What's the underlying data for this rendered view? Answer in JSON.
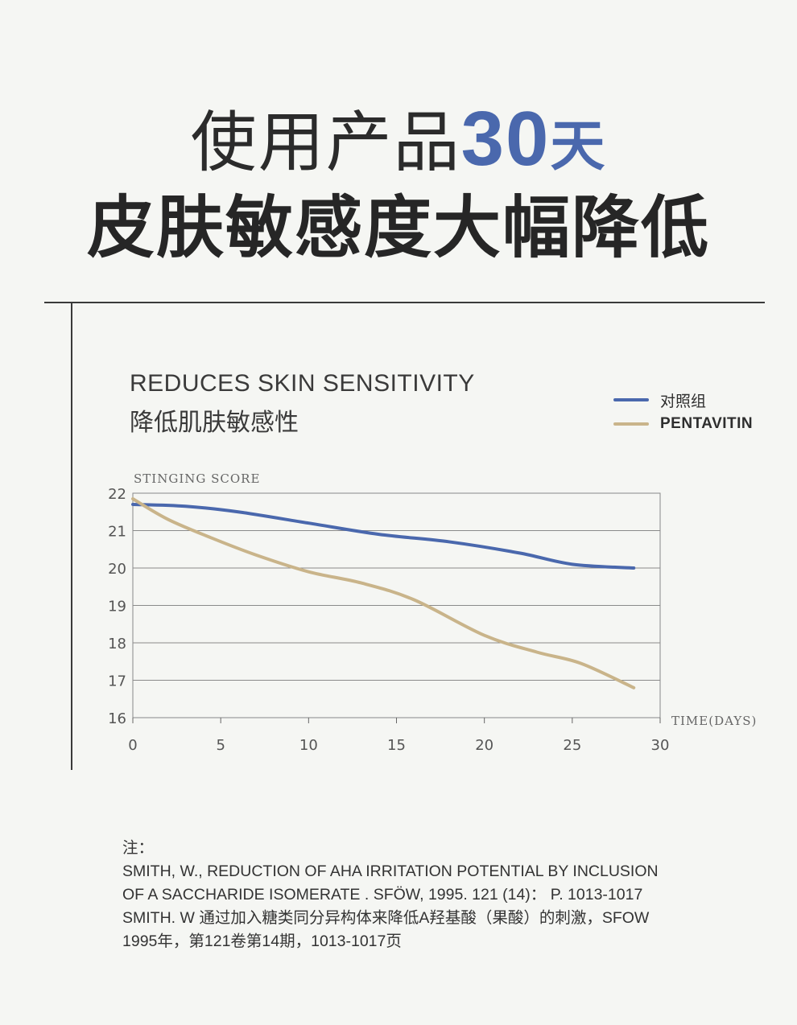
{
  "headline": {
    "line1_pre": "使用产品",
    "line1_num": "30",
    "line1_unit": "天",
    "line2": "皮肤敏感度大幅降低"
  },
  "colors": {
    "accent": "#4a68ad",
    "control": "#4a68ad",
    "pentavitin": "#c9b48a"
  },
  "chart_data": {
    "type": "line",
    "title": "REDUCES SKIN SENSITIVITY",
    "subtitle": "降低肌肤敏感性",
    "xlabel": "TIME(DAYS)",
    "ylabel": "STINGING SCORE",
    "xlim": [
      0,
      30
    ],
    "ylim": [
      16,
      22
    ],
    "xticks": [
      "0",
      "5",
      "10",
      "15",
      "20",
      "25",
      "30"
    ],
    "yticks": [
      "22",
      "21",
      "20",
      "19",
      "18",
      "17",
      "16"
    ],
    "grid": true,
    "legend": "top-right",
    "series": [
      {
        "name": "对照组",
        "x": [
          0,
          3,
          6,
          10,
          14,
          18,
          22,
          25,
          28.5
        ],
        "y": [
          21.7,
          21.65,
          21.5,
          21.2,
          20.9,
          20.7,
          20.4,
          20.1,
          20.0
        ]
      },
      {
        "name": "PENTAVITIN",
        "x": [
          0,
          2,
          4.5,
          7,
          10,
          13,
          16,
          20,
          23,
          25.5,
          28.5
        ],
        "y": [
          21.85,
          21.3,
          20.8,
          20.35,
          19.9,
          19.6,
          19.15,
          18.2,
          17.75,
          17.45,
          16.8
        ]
      }
    ]
  },
  "note": {
    "label": "注：",
    "lines": [
      "SMITH, W., REDUCTION OF AHA IRRITATION POTENTIAL BY INCLUSION",
      "OF A SACCHARIDE ISOMERATE . SFÖW, 1995. 121 (14)： P. 1013-1017",
      "SMITH. W 通过加入糖类同分异构体来降低A羟基酸（果酸）的刺激，SFOW",
      "1995年，第121卷第14期，1013-1017页"
    ]
  }
}
